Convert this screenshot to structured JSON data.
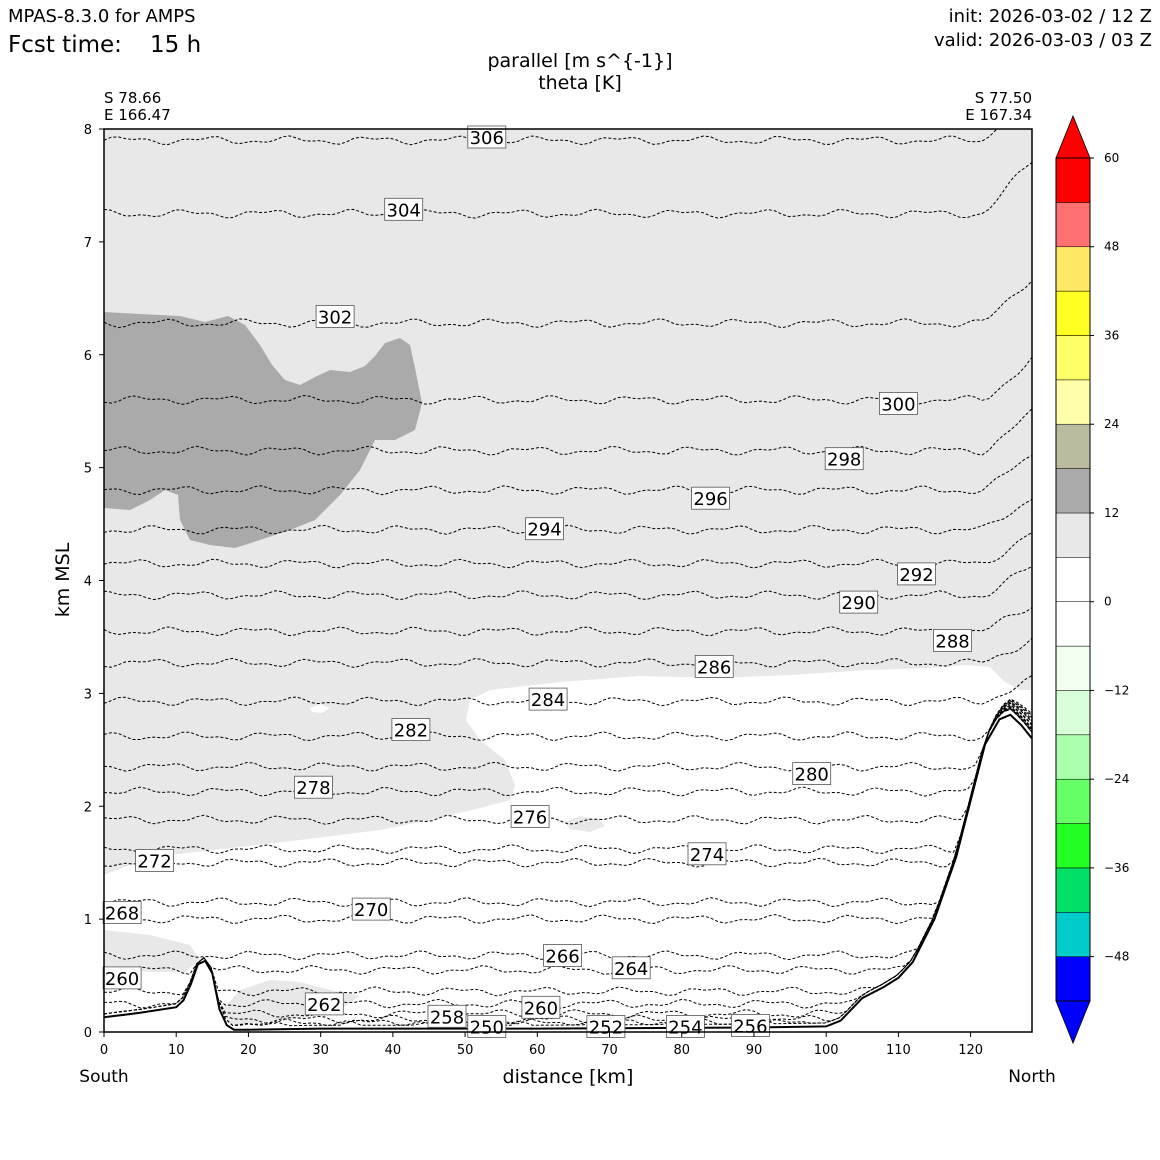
{
  "header": {
    "model": "MPAS-8.3.0 for AMPS",
    "fcst_label": "Fcst time:",
    "fcst_value": "15 h",
    "init": "init: 2026-03-02 / 12 Z",
    "valid": "valid: 2026-03-03 / 03 Z"
  },
  "endpoints": {
    "left_lat": "S 78.66",
    "left_lon": "E 166.47",
    "right_lat": "S 77.50",
    "right_lon": "E 167.34",
    "left_dir": "South",
    "right_dir": "North"
  },
  "chart_data": {
    "type": "cross-section",
    "title": "parallel [m s^{-1}]",
    "subtitle": "theta [K]",
    "xlabel": "distance [km]",
    "ylabel": "km MSL",
    "xlim": [
      0,
      128.5
    ],
    "ylim": [
      0,
      8
    ],
    "xticks": [
      0,
      10,
      20,
      30,
      40,
      50,
      60,
      70,
      80,
      90,
      100,
      110,
      120
    ],
    "yticks": [
      0,
      1,
      2,
      3,
      4,
      5,
      6,
      7,
      8
    ],
    "colorbar": {
      "levels": [
        -54,
        -48,
        -42,
        -36,
        -30,
        -24,
        -18,
        -12,
        -6,
        0,
        6,
        12,
        18,
        24,
        30,
        36,
        42,
        48,
        54,
        60
      ],
      "colors": [
        "#0000ff",
        "#00cccc",
        "#00e066",
        "#22ff22",
        "#66ff66",
        "#aaffaa",
        "#d8ffd8",
        "#f0fff0",
        "#ffffff",
        "#ffffff",
        "#e8e8e8",
        "#aaaaaa",
        "#bbbba0",
        "#ffffaa",
        "#ffff66",
        "#ffff22",
        "#ffe866",
        "#ff7070",
        "#ff0000"
      ],
      "over_color": "#ff0000",
      "under_color": "#0000ff",
      "tick_labels": [
        "60",
        "48",
        "36",
        "24",
        "12",
        "0",
        "−12",
        "−24",
        "−36",
        "−48"
      ],
      "tick_values": [
        60,
        48,
        36,
        24,
        12,
        0,
        -12,
        -24,
        -36,
        -48
      ]
    },
    "contour_labels": [
      {
        "text": "306",
        "x": 53,
        "y": 7.92
      },
      {
        "text": "304",
        "x": 41.5,
        "y": 7.28
      },
      {
        "text": "302",
        "x": 32,
        "y": 6.33
      },
      {
        "text": "300",
        "x": 110,
        "y": 5.56
      },
      {
        "text": "298",
        "x": 102.5,
        "y": 5.07
      },
      {
        "text": "296",
        "x": 84,
        "y": 4.72
      },
      {
        "text": "294",
        "x": 61,
        "y": 4.45
      },
      {
        "text": "292",
        "x": 112.5,
        "y": 4.05
      },
      {
        "text": "290",
        "x": 104.5,
        "y": 3.8
      },
      {
        "text": "288",
        "x": 117.5,
        "y": 3.46
      },
      {
        "text": "286",
        "x": 84.5,
        "y": 3.23
      },
      {
        "text": "284",
        "x": 61.5,
        "y": 2.94
      },
      {
        "text": "282",
        "x": 42.5,
        "y": 2.67
      },
      {
        "text": "280",
        "x": 98,
        "y": 2.28
      },
      {
        "text": "278",
        "x": 29,
        "y": 2.16
      },
      {
        "text": "276",
        "x": 59,
        "y": 1.9
      },
      {
        "text": "274",
        "x": 83.5,
        "y": 1.57
      },
      {
        "text": "272",
        "x": 7,
        "y": 1.51
      },
      {
        "text": "270",
        "x": 37,
        "y": 1.08
      },
      {
        "text": "268",
        "x": 2.5,
        "y": 1.05
      },
      {
        "text": "266",
        "x": 63.5,
        "y": 0.67
      },
      {
        "text": "264",
        "x": 73,
        "y": 0.56
      },
      {
        "text": "262",
        "x": 30.5,
        "y": 0.24
      },
      {
        "text": "260",
        "x": 2.5,
        "y": 0.47
      },
      {
        "text": "260",
        "x": 60.5,
        "y": 0.21
      },
      {
        "text": "258",
        "x": 47.5,
        "y": 0.13
      },
      {
        "text": "256",
        "x": 89.5,
        "y": 0.05
      },
      {
        "text": "254",
        "x": 80.5,
        "y": 0.04
      },
      {
        "text": "252",
        "x": 69.5,
        "y": 0.04
      },
      {
        "text": "250",
        "x": 53,
        "y": 0.04
      }
    ],
    "terrain": {
      "x_km": [
        0,
        5,
        10,
        11,
        12,
        13,
        14,
        15,
        16,
        17,
        18,
        20,
        30,
        60,
        90,
        100,
        102,
        105,
        108,
        110,
        112,
        115,
        118,
        120,
        122,
        124,
        125.5,
        127,
        128.5
      ],
      "z_km": [
        0.13,
        0.17,
        0.22,
        0.28,
        0.42,
        0.6,
        0.63,
        0.52,
        0.2,
        0.06,
        0.02,
        0.02,
        0.03,
        0.03,
        0.04,
        0.05,
        0.1,
        0.3,
        0.4,
        0.48,
        0.62,
        1.0,
        1.55,
        2.05,
        2.55,
        2.77,
        2.81,
        2.72,
        2.6
      ]
    },
    "theta_levels": [
      {
        "k": 306,
        "y": 7.9
      },
      {
        "k": 304,
        "y": 7.25
      },
      {
        "k": 302,
        "y": 6.28
      },
      {
        "k": 300,
        "y": 5.6
      },
      {
        "k": 298,
        "y": 5.15
      },
      {
        "k": 296,
        "y": 4.8
      },
      {
        "k": 294,
        "y": 4.45
      },
      {
        "k": 292,
        "y": 4.15
      },
      {
        "k": 290,
        "y": 3.87
      },
      {
        "k": 288,
        "y": 3.55
      },
      {
        "k": 286,
        "y": 3.27
      },
      {
        "k": 284,
        "y": 2.93
      },
      {
        "k": 282,
        "y": 2.62
      },
      {
        "k": 280,
        "y": 2.35
      },
      {
        "k": 278,
        "y": 2.13
      },
      {
        "k": 276,
        "y": 1.88
      },
      {
        "k": 274,
        "y": 1.62
      },
      {
        "k": 272,
        "y": 1.5
      },
      {
        "k": 270,
        "y": 1.15
      },
      {
        "k": 268,
        "y": 1.0
      },
      {
        "k": 266,
        "y": 0.68
      },
      {
        "k": 264,
        "y": 0.55
      },
      {
        "k": 262,
        "y": 0.36
      },
      {
        "k": 260,
        "y": 0.25
      },
      {
        "k": 258,
        "y": 0.16
      },
      {
        "k": 256,
        "y": 0.11
      },
      {
        "k": 254,
        "y": 0.08
      },
      {
        "k": 252,
        "y": 0.06
      }
    ],
    "shaded_regions": [
      {
        "name": "light-grey-6-12",
        "value_range": [
          6,
          12
        ]
      },
      {
        "name": "dark-grey-12-18",
        "value_range": [
          12,
          18
        ]
      }
    ]
  }
}
